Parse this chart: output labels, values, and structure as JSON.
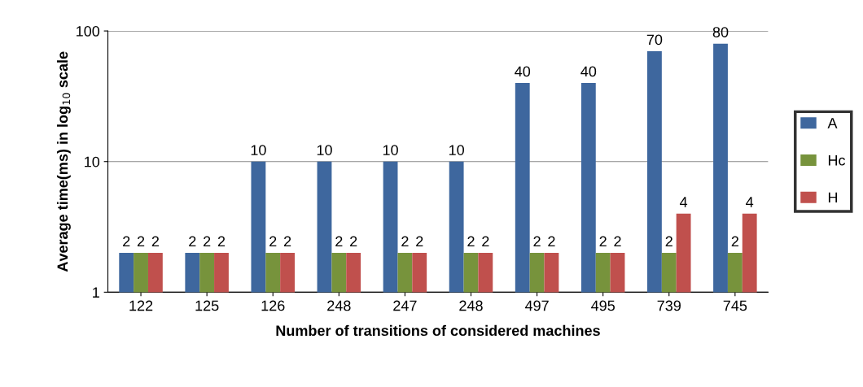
{
  "chart_data": {
    "type": "bar",
    "xlabel": "Number of transitions of considered machines",
    "ylabel": "Average time(ms) in log$_{10}$ scale",
    "categories": [
      "122",
      "125",
      "126",
      "248",
      "247",
      "248",
      "497",
      "495",
      "739",
      "745"
    ],
    "series": [
      {
        "name": "A",
        "color": "#3e679e",
        "values": [
          2,
          2,
          10,
          10,
          10,
          10,
          40,
          40,
          70,
          80
        ]
      },
      {
        "name": "Hc",
        "color": "#77933c",
        "values": [
          2,
          2,
          2,
          2,
          2,
          2,
          2,
          2,
          2,
          2
        ]
      },
      {
        "name": "H",
        "color": "#c0504d",
        "values": [
          2,
          2,
          2,
          2,
          2,
          2,
          2,
          2,
          4,
          4
        ]
      }
    ],
    "log": "y",
    "ylim": [
      1,
      100
    ],
    "yticks": [
      1,
      10,
      100
    ],
    "grid": "y",
    "legend": "right",
    "data_labels": true
  }
}
